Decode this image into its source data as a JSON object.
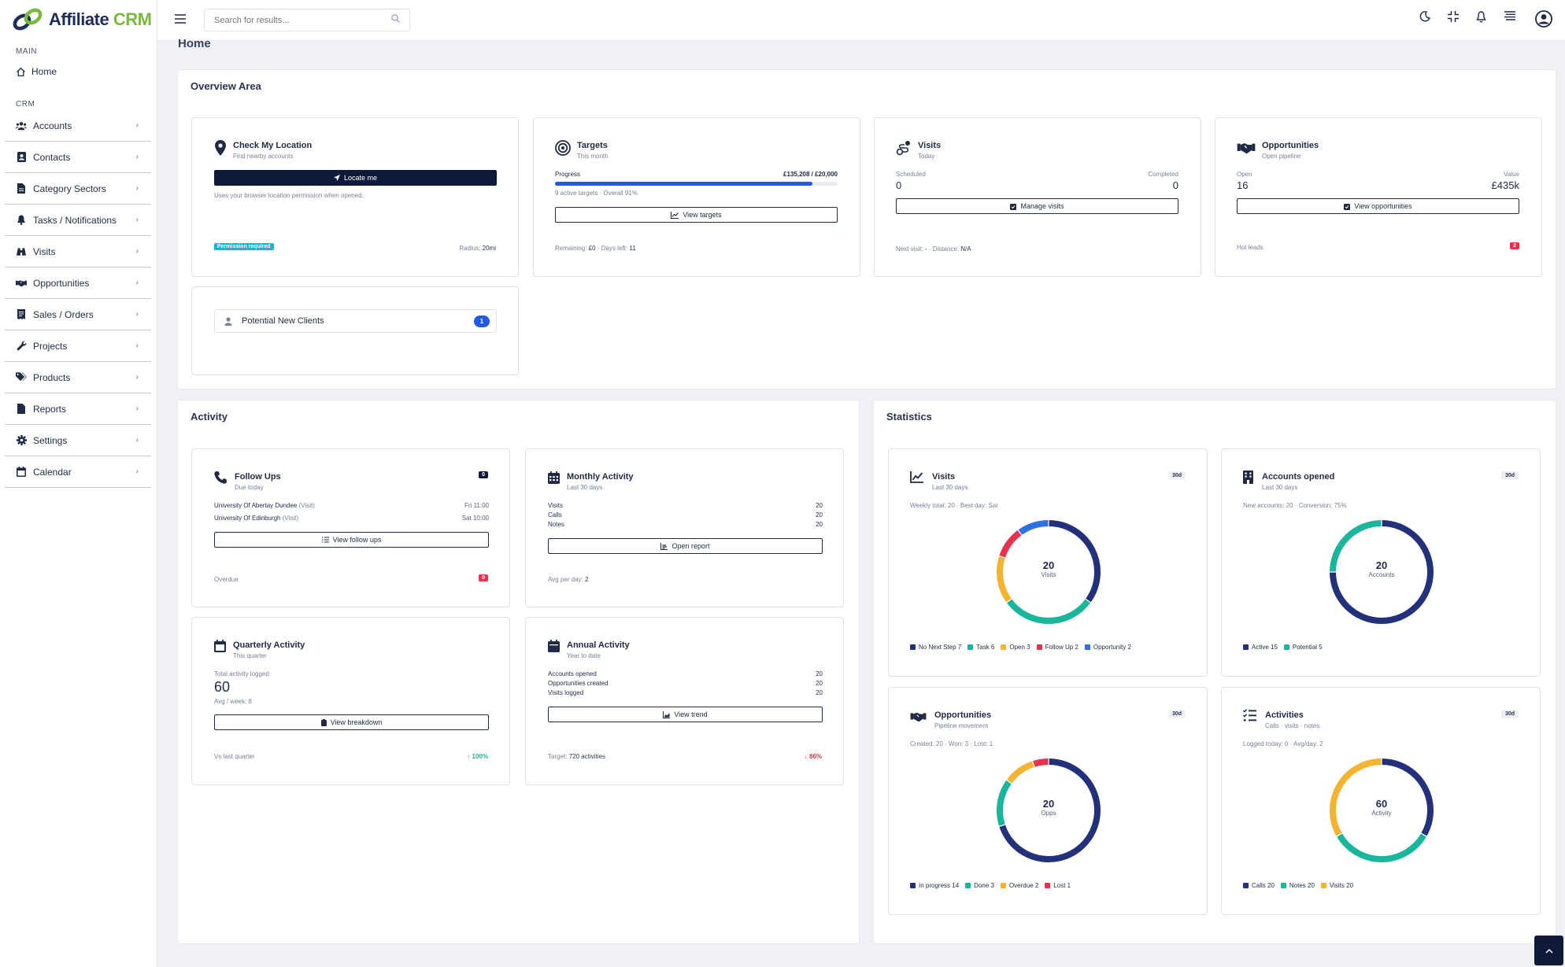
{
  "app": {
    "logo_word1": "Affiliate",
    "logo_word2": "CRM"
  },
  "sidebar": {
    "section_main": "MAIN",
    "home": "Home",
    "section_crm": "CRM",
    "items": [
      {
        "label": "Accounts",
        "icon": "users-icon"
      },
      {
        "label": "Contacts",
        "icon": "contact-book-icon"
      },
      {
        "label": "Category Sectors",
        "icon": "file-icon"
      },
      {
        "label": "Tasks / Notifications",
        "icon": "bell-icon"
      },
      {
        "label": "Visits",
        "icon": "binoculars-icon"
      },
      {
        "label": "Opportunities",
        "icon": "handshake-icon"
      },
      {
        "label": "Sales / Orders",
        "icon": "receipt-icon"
      },
      {
        "label": "Projects",
        "icon": "wrench-icon"
      },
      {
        "label": "Products",
        "icon": "tags-icon"
      },
      {
        "label": "Reports",
        "icon": "file-icon"
      },
      {
        "label": "Settings",
        "icon": "gear-icon"
      },
      {
        "label": "Calendar",
        "icon": "calendar-icon"
      }
    ]
  },
  "header": {
    "search_placeholder": "Search for results..."
  },
  "page": {
    "title": "Home"
  },
  "overview": {
    "title": "Overview Area",
    "location": {
      "title": "Check My Location",
      "sub": "Find nearby accounts",
      "button": "Locate me",
      "note": "Uses your browser location permission when opened.",
      "badge": "Permission required",
      "radius_label": "Radius:",
      "radius": "20mi"
    },
    "targets": {
      "title": "Targets",
      "sub": "This month",
      "progress_label": "Progress",
      "progress_value": "£135,208 / £20,000",
      "progress_fraction": 0.91,
      "active_note": "9 active targets · Overall 91%",
      "button": "View targets",
      "remaining_label": "Remaining:",
      "remaining": "£0",
      "days_label": "· Days left:",
      "days": "11"
    },
    "visits": {
      "title": "Visits",
      "sub": "Today",
      "scheduled_label": "Scheduled",
      "scheduled": "0",
      "completed_label": "Completed",
      "completed": "0",
      "button": "Manage visits",
      "next_label": "Next visit:",
      "next": "-",
      "distance_label": "· Distance:",
      "distance": "N/A"
    },
    "opportunities": {
      "title": "Opportunities",
      "sub": "Open pipeline",
      "open_label": "Open",
      "open": "16",
      "value_label": "Value",
      "value": "£435k",
      "button": "View opportunities",
      "hot_label": "Hot leads",
      "hot": "2"
    },
    "potential": {
      "label": "Potential New Clients",
      "count": "1"
    }
  },
  "activity": {
    "title": "Activity",
    "followups": {
      "title": "Follow Ups",
      "sub": "Due today",
      "badge": "0",
      "rows": [
        {
          "name": "University Of Abertay Dundee",
          "type": "(Visit)",
          "time": "Fri 11:00"
        },
        {
          "name": "University Of Edinburgh",
          "type": "(Visit)",
          "time": "Sat 10:00"
        }
      ],
      "button": "View follow ups",
      "overdue_label": "Overdue",
      "overdue": "0"
    },
    "monthly": {
      "title": "Monthly Activity",
      "sub": "Last 30 days",
      "rows": [
        {
          "label": "Visits",
          "value": "20"
        },
        {
          "label": "Calls",
          "value": "20"
        },
        {
          "label": "Notes",
          "value": "20"
        }
      ],
      "button": "Open report",
      "avg_label": "Avg per day:",
      "avg": "2"
    },
    "quarterly": {
      "title": "Quarterly Activity",
      "sub": "This quarter",
      "total_label": "Total activity logged",
      "total": "60",
      "avg": "Avg / week: 8",
      "button": "View breakdown",
      "vs_label": "Vs last quarter",
      "vs": "↑ 100%"
    },
    "annual": {
      "title": "Annual Activity",
      "sub": "Year to date",
      "rows": [
        {
          "label": "Accounts opened",
          "value": "20"
        },
        {
          "label": "Opportunities created",
          "value": "20"
        },
        {
          "label": "Visits logged",
          "value": "20"
        }
      ],
      "button": "View trend",
      "target_label": "Target:",
      "target": "720 activities",
      "pct": "↓ 86%"
    }
  },
  "statistics": {
    "title": "Statistics",
    "charts": [
      {
        "title": "Visits",
        "sub": "Last 30 days",
        "period": "30d",
        "info": "Weekly total: 20 · Best day: Sat",
        "center_value": "20",
        "center_label": "Visits",
        "icon": "line-chart-icon",
        "chart_data": {
          "type": "pie",
          "categories": [
            "No Next Step",
            "Task",
            "Open",
            "Follow Up",
            "Opportunity"
          ],
          "values": [
            7,
            6,
            3,
            2,
            2
          ],
          "colors": [
            "#23307a",
            "#1ab69b",
            "#f3b431",
            "#e8314d",
            "#2f6fe4"
          ]
        }
      },
      {
        "title": "Accounts opened",
        "sub": "Last 30 days",
        "period": "30d",
        "info": "New accounts: 20 · Conversion: 75%",
        "center_value": "20",
        "center_label": "Accounts",
        "icon": "building-icon",
        "chart_data": {
          "type": "pie",
          "categories": [
            "Active",
            "Potential"
          ],
          "values": [
            15,
            5
          ],
          "colors": [
            "#23307a",
            "#1ab69b"
          ]
        }
      },
      {
        "title": "Opportunities",
        "sub": "Pipeline movement",
        "period": "30d",
        "info": "Created: 20 · Won: 3 · Lost: 1",
        "center_value": "20",
        "center_label": "Opps",
        "icon": "handshake-icon",
        "chart_data": {
          "type": "pie",
          "categories": [
            "In progress",
            "Done",
            "Overdue",
            "Lost"
          ],
          "values": [
            14,
            3,
            2,
            1
          ],
          "colors": [
            "#23307a",
            "#1ab69b",
            "#f3b431",
            "#e8314d"
          ]
        }
      },
      {
        "title": "Activities",
        "sub": "Calls · visits · notes",
        "period": "30d",
        "info": "Logged today: 0 · Avg/day: 2",
        "center_value": "60",
        "center_label": "Activity",
        "icon": "checklist-icon",
        "chart_data": {
          "type": "pie",
          "categories": [
            "Calls",
            "Notes",
            "Visits"
          ],
          "values": [
            20,
            20,
            20
          ],
          "colors": [
            "#23307a",
            "#1ab69b",
            "#f3b431"
          ]
        }
      }
    ]
  },
  "colors": {
    "navy": "#0f1a3a",
    "accent_blue": "#2059e8",
    "green": "#1ab69b",
    "red": "#e8314d",
    "cyan": "#17b6d6"
  }
}
